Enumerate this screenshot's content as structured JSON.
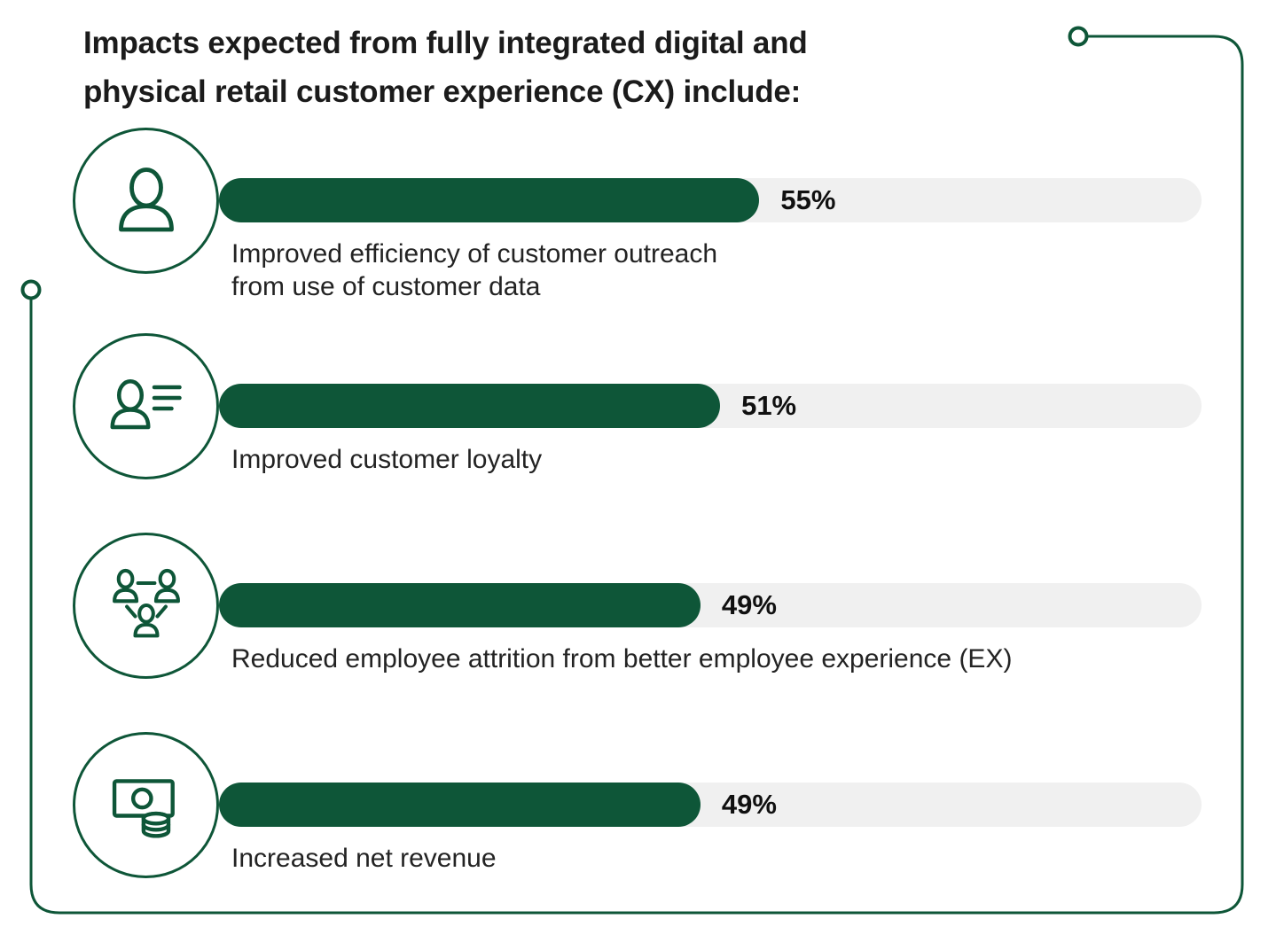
{
  "title": "Impacts expected from fully integrated digital and\nphysical retail customer experience (CX) include:",
  "colors": {
    "green": "#0E5638",
    "track": "#F0F0F0",
    "text": "#1B1B1B"
  },
  "chart_data": {
    "type": "bar",
    "orientation": "horizontal",
    "title": "Impacts expected from fully integrated digital and physical retail customer experience (CX) include:",
    "categories": [
      "Improved efficiency of customer outreach from use of customer data",
      "Improved customer loyalty",
      "Reduced employee attrition from better employee experience (EX)",
      "Increased net revenue"
    ],
    "values": [
      55,
      51,
      49,
      49
    ],
    "value_labels": [
      "55%",
      "51%",
      "49%",
      "49%"
    ],
    "xlim": [
      0,
      100
    ],
    "grid": false,
    "legend": false,
    "bar_color": "#0E5638",
    "track_color": "#F0F0F0"
  },
  "rows": [
    {
      "value": 55,
      "pct_label": "55%",
      "caption": "Improved efficiency of customer outreach\nfrom use of customer data",
      "icon": "single-customer"
    },
    {
      "value": 51,
      "pct_label": "51%",
      "caption": "Improved customer loyalty",
      "icon": "customer-profile-lines"
    },
    {
      "value": 49,
      "pct_label": "49%",
      "caption": "Reduced employee attrition from better employee experience (EX)",
      "icon": "employee-network"
    },
    {
      "value": 49,
      "pct_label": "49%",
      "caption": "Increased net revenue",
      "icon": "money"
    }
  ]
}
